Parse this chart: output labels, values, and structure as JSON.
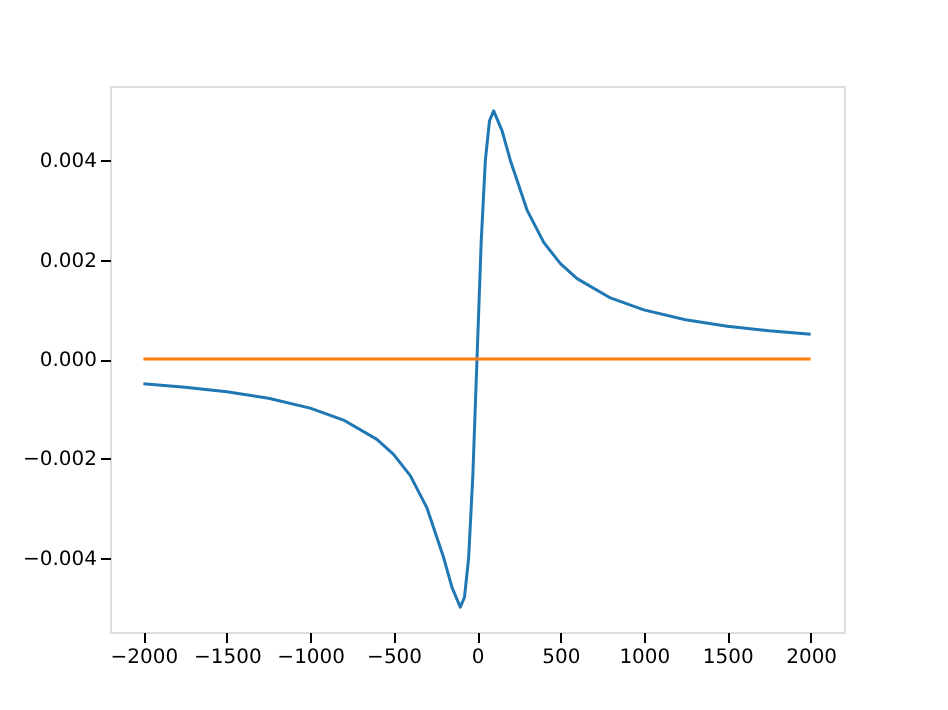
{
  "chart_data": {
    "type": "line",
    "xlim": [
      -2200,
      2200
    ],
    "ylim": [
      -0.0055,
      0.0055
    ],
    "xticks": [
      {
        "value": -2000,
        "label": "−2000"
      },
      {
        "value": -1500,
        "label": "−1500"
      },
      {
        "value": -1000,
        "label": "−1000"
      },
      {
        "value": -500,
        "label": "−500"
      },
      0,
      500,
      1000,
      1500,
      2000
    ],
    "yticks": [
      {
        "value": -0.004,
        "label": "−0.004"
      },
      {
        "value": -0.002,
        "label": "−0.002"
      },
      {
        "value": 0,
        "label": "0.000"
      },
      {
        "value": 0.002,
        "label": "0.002"
      },
      {
        "value": 0.004,
        "label": "0.004"
      }
    ],
    "grid": false,
    "series": [
      {
        "color": "#1f77b4",
        "x": [
          -2000,
          -1750,
          -1500,
          -1250,
          -1000,
          -800,
          -600,
          -500,
          -400,
          -300,
          -200,
          -150,
          -100,
          -75,
          -50,
          -25,
          0,
          25,
          50,
          75,
          100,
          150,
          200,
          300,
          400,
          500,
          600,
          800,
          1000,
          1250,
          1500,
          1750,
          2000
        ],
        "values": [
          -0.0005,
          -0.00057,
          -0.00066,
          -0.00079,
          -0.00099,
          -0.00123,
          -0.00162,
          -0.00192,
          -0.00235,
          -0.003,
          -0.004,
          -0.0046,
          -0.005,
          -0.0048,
          -0.004,
          -0.00235,
          0,
          0.00235,
          0.004,
          0.0048,
          0.005,
          0.0046,
          0.004,
          0.003,
          0.00235,
          0.00192,
          0.00162,
          0.00123,
          0.00099,
          0.00079,
          0.00066,
          0.00057,
          0.0005
        ]
      },
      {
        "color": "#ff7f0e",
        "x": [
          -2000,
          2000
        ],
        "values": [
          0,
          0
        ]
      }
    ]
  }
}
